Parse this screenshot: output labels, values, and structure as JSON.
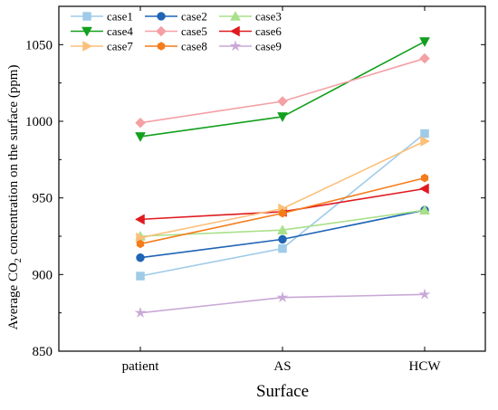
{
  "chart_data": {
    "type": "line",
    "categories": [
      "patient",
      "AS",
      "HCW"
    ],
    "xlabel": "Surface",
    "ylabel": {
      "prefix": "Average CO",
      "subscript": "2",
      "suffix": " concentration on the surface (ppm)"
    },
    "ylim": [
      850,
      1075
    ],
    "yticks": [
      850,
      900,
      950,
      1000,
      1050
    ],
    "legend_position": "top-left",
    "legend_columns": 3,
    "series": [
      {
        "name": "case1",
        "values": [
          899,
          917,
          992
        ],
        "color": "#9fcbe8",
        "marker": "square"
      },
      {
        "name": "case2",
        "values": [
          911,
          923,
          942
        ],
        "color": "#1f64b5",
        "marker": "circle"
      },
      {
        "name": "case3",
        "values": [
          925,
          929,
          942
        ],
        "color": "#a9e08a",
        "marker": "triangle-up"
      },
      {
        "name": "case4",
        "values": [
          990,
          1003,
          1052
        ],
        "color": "#13a01e",
        "marker": "triangle-down"
      },
      {
        "name": "case5",
        "values": [
          999,
          1013,
          1041
        ],
        "color": "#f4a0a5",
        "marker": "diamond"
      },
      {
        "name": "case6",
        "values": [
          936,
          941,
          956
        ],
        "color": "#e01a1f",
        "marker": "triangle-left"
      },
      {
        "name": "case7",
        "values": [
          924,
          943,
          987
        ],
        "color": "#fbc07a",
        "marker": "triangle-right"
      },
      {
        "name": "case8",
        "values": [
          920,
          940,
          963
        ],
        "color": "#f47c1a",
        "marker": "hexagon"
      },
      {
        "name": "case9",
        "values": [
          875,
          885,
          887
        ],
        "color": "#c9a8d6",
        "marker": "star"
      }
    ]
  }
}
